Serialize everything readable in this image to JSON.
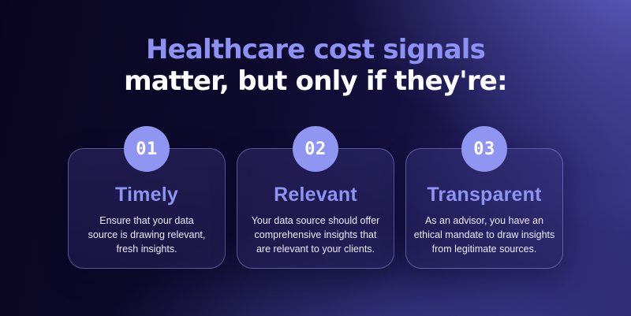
{
  "title": {
    "line1": "Healthcare cost signals",
    "line2": "matter, but only if they're:"
  },
  "cards": [
    {
      "number": "01",
      "heading": "Timely",
      "body": "Ensure that your data\nsource is drawing relevant,\nfresh insights."
    },
    {
      "number": "02",
      "heading": "Relevant",
      "body": "Your data source should offer\ncomprehensive insights that\nare relevant to your clients."
    },
    {
      "number": "03",
      "heading": "Transparent",
      "body": "As an advisor, you have an\nethical mandate to draw insights\nfrom legitimate sources."
    }
  ],
  "colors": {
    "accent_badge": "#8f96f1",
    "title_accent": "#8c92f3",
    "title_white": "#fdfdff",
    "card_heading": "#8e94f4",
    "body_text": "#eceaf8",
    "background_dark": "#090521",
    "background_light": "#4a49a0",
    "card_border": "#9ea4f0"
  }
}
